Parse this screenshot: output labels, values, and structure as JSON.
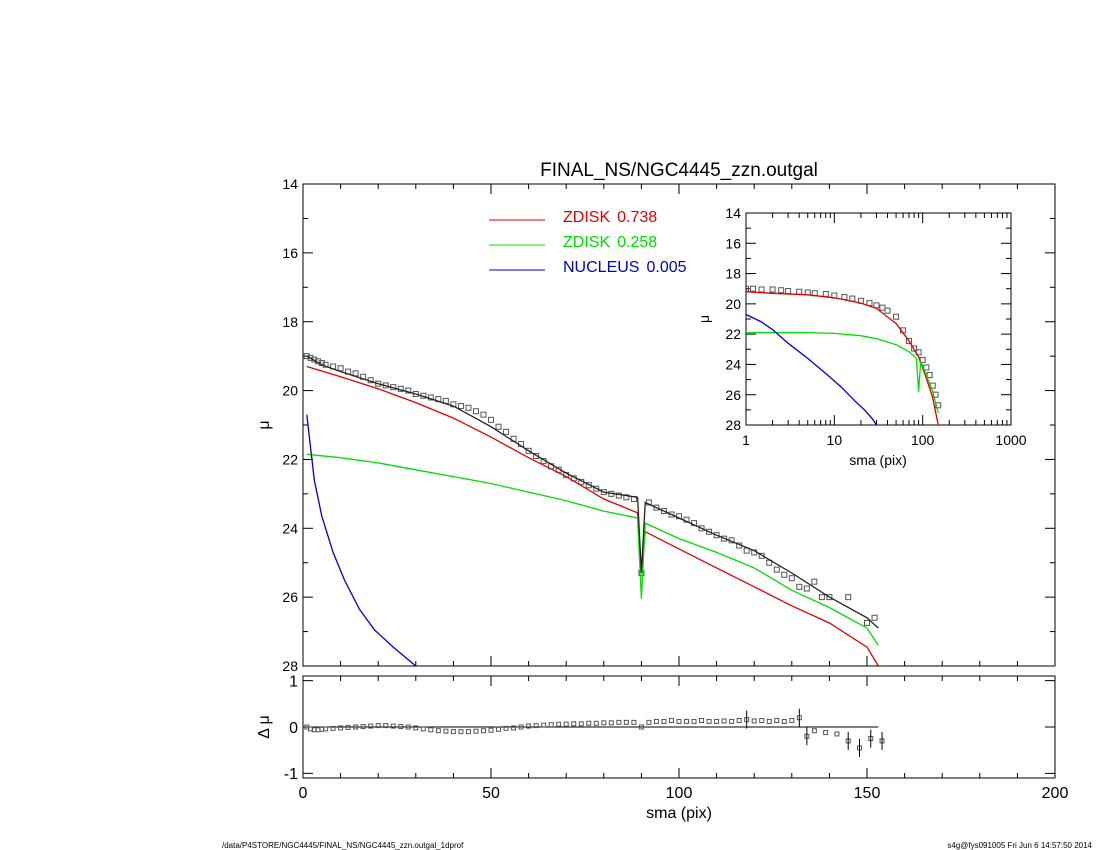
{
  "colors": {
    "zdisk1": "#e00000",
    "zdisk2": "#00dd00",
    "nucleus": "#0000cc",
    "model": "#222222",
    "data_points": "#555555",
    "axes": "#000000"
  },
  "footer": {
    "left": "/data/P4STORE/NGC4445/FINAL_NS/NGC4445_zzn.outgal_1dprof",
    "right": "s4g@fys091005  Fri Jun  6 14:57:50 2014"
  },
  "chart_data": [
    {
      "type": "line",
      "title": "FINAL_NS/NGC4445_zzn.outgal",
      "xlabel": "",
      "ylabel": "μ",
      "xlim": [
        0,
        200
      ],
      "ylim": [
        28,
        14
      ],
      "x_ticks": [
        0,
        50,
        100,
        150,
        200
      ],
      "x_tick_labels": [
        "",
        "",
        "",
        "",
        ""
      ],
      "y_ticks": [
        14,
        16,
        18,
        20,
        22,
        24,
        26,
        28
      ],
      "y_tick_labels": [
        "14",
        "16",
        "18",
        "20",
        "22",
        "24",
        "26",
        "28"
      ],
      "legend": {
        "placement": "top-center",
        "entries": [
          {
            "label": "ZDISK",
            "value": "0.738",
            "color": "#e00000"
          },
          {
            "label": "ZDISK",
            "value": "0.258",
            "color": "#00dd00"
          },
          {
            "label": "NUCLEUS",
            "value": "0.005",
            "color": "#0000cc"
          }
        ]
      },
      "series": [
        {
          "name": "ZDISK 0.738",
          "color": "#e00000",
          "x": [
            1,
            10,
            20,
            30,
            40,
            50,
            60,
            70,
            80,
            89,
            90,
            91,
            100,
            110,
            120,
            130,
            140,
            150,
            153
          ],
          "y": [
            19.3,
            19.6,
            19.95,
            20.35,
            20.8,
            21.35,
            21.95,
            22.5,
            23.15,
            23.55,
            25.2,
            24.1,
            24.6,
            25.15,
            25.7,
            26.25,
            26.75,
            27.45,
            28.0
          ]
        },
        {
          "name": "ZDISK 0.258",
          "color": "#00dd00",
          "x": [
            1,
            10,
            20,
            30,
            40,
            50,
            60,
            70,
            80,
            89,
            90,
            91,
            100,
            110,
            120,
            130,
            140,
            150,
            153
          ],
          "y": [
            21.85,
            21.95,
            22.1,
            22.3,
            22.5,
            22.7,
            22.95,
            23.2,
            23.5,
            23.7,
            26.05,
            23.85,
            24.3,
            24.7,
            25.15,
            25.8,
            26.3,
            26.9,
            27.4
          ]
        },
        {
          "name": "NUCLEUS 0.005",
          "color": "#0000cc",
          "x": [
            1,
            3,
            5,
            8,
            11,
            15,
            19,
            24,
            30
          ],
          "y": [
            20.7,
            22.6,
            23.65,
            24.7,
            25.5,
            26.35,
            26.95,
            27.45,
            28.0
          ]
        },
        {
          "name": "",
          "color": "#222222",
          "x": [
            1,
            5,
            10,
            20,
            30,
            40,
            50,
            60,
            70,
            80,
            89,
            90,
            91,
            100,
            110,
            120,
            130,
            140,
            150,
            153
          ],
          "y": [
            19.0,
            19.25,
            19.45,
            19.8,
            20.1,
            20.45,
            21.05,
            21.75,
            22.4,
            22.95,
            23.1,
            25.3,
            23.25,
            23.7,
            24.2,
            24.65,
            25.3,
            26.0,
            26.6,
            26.9
          ]
        }
      ],
      "points": {
        "x": [
          1,
          2,
          3,
          4,
          5,
          6,
          8,
          10,
          12,
          14,
          16,
          18,
          20,
          22,
          24,
          26,
          28,
          30,
          32,
          34,
          36,
          38,
          40,
          42,
          44,
          46,
          48,
          50,
          52,
          54,
          56,
          58,
          60,
          62,
          64,
          66,
          68,
          70,
          72,
          74,
          76,
          78,
          80,
          82,
          84,
          86,
          88,
          90,
          92,
          94,
          96,
          98,
          100,
          102,
          104,
          106,
          108,
          110,
          112,
          114,
          116,
          118,
          120,
          122,
          124,
          126,
          128,
          130,
          132,
          134,
          136,
          138,
          140,
          145,
          150,
          152
        ],
        "y": [
          19.0,
          19.05,
          19.1,
          19.15,
          19.2,
          19.25,
          19.3,
          19.35,
          19.45,
          19.5,
          19.6,
          19.7,
          19.8,
          19.85,
          19.9,
          19.95,
          20.0,
          20.1,
          20.15,
          20.2,
          20.25,
          20.3,
          20.4,
          20.45,
          20.5,
          20.6,
          20.7,
          20.85,
          21.05,
          21.2,
          21.4,
          21.55,
          21.75,
          21.9,
          22.05,
          22.2,
          22.3,
          22.45,
          22.55,
          22.65,
          22.75,
          22.85,
          22.95,
          23.0,
          23.05,
          23.1,
          23.15,
          25.3,
          23.25,
          23.4,
          23.5,
          23.6,
          23.65,
          23.75,
          23.85,
          24.0,
          24.1,
          24.2,
          24.3,
          24.35,
          24.5,
          24.65,
          24.7,
          24.8,
          25.0,
          25.2,
          25.35,
          25.45,
          25.7,
          25.75,
          25.55,
          26.0,
          26.0,
          26.0,
          26.75,
          26.6
        ]
      }
    },
    {
      "type": "scatter",
      "title": "",
      "xlabel": "sma (pix)",
      "ylabel": "Δ μ",
      "xlim": [
        0,
        200
      ],
      "ylim": [
        -1.1,
        1.1
      ],
      "x_ticks": [
        0,
        50,
        100,
        150,
        200
      ],
      "x_tick_labels": [
        "0",
        "50",
        "100",
        "150",
        "200"
      ],
      "y_ticks": [
        -1,
        0,
        1
      ],
      "y_tick_labels": [
        "-1",
        "0",
        "1"
      ],
      "reference_line": {
        "x": [
          0,
          153
        ],
        "y": 0
      },
      "points": {
        "x": [
          1,
          2,
          3,
          4,
          5,
          6,
          8,
          10,
          12,
          14,
          16,
          18,
          20,
          22,
          24,
          26,
          28,
          30,
          32,
          34,
          36,
          38,
          40,
          42,
          44,
          46,
          48,
          50,
          52,
          54,
          56,
          58,
          60,
          62,
          64,
          66,
          68,
          70,
          72,
          74,
          76,
          78,
          80,
          82,
          84,
          86,
          88,
          90,
          92,
          94,
          96,
          98,
          100,
          102,
          104,
          106,
          108,
          110,
          112,
          114,
          116,
          118,
          120,
          122,
          124,
          126,
          128,
          130,
          132,
          134,
          136,
          139,
          142,
          145,
          148,
          151,
          154
        ],
        "y": [
          0.0,
          -0.04,
          -0.06,
          -0.06,
          -0.05,
          -0.04,
          -0.03,
          -0.02,
          -0.01,
          0.0,
          0.01,
          0.02,
          0.03,
          0.03,
          0.02,
          0.01,
          0.0,
          -0.02,
          -0.04,
          -0.06,
          -0.08,
          -0.09,
          -0.1,
          -0.1,
          -0.1,
          -0.09,
          -0.08,
          -0.07,
          -0.05,
          -0.03,
          -0.02,
          0.0,
          0.02,
          0.03,
          0.04,
          0.05,
          0.06,
          0.06,
          0.07,
          0.07,
          0.08,
          0.08,
          0.09,
          0.09,
          0.1,
          0.1,
          0.1,
          0.0,
          0.1,
          0.12,
          0.12,
          0.14,
          0.12,
          0.12,
          0.12,
          0.14,
          0.12,
          0.12,
          0.13,
          0.12,
          0.14,
          0.16,
          0.13,
          0.14,
          0.12,
          0.14,
          0.12,
          0.14,
          0.2,
          -0.2,
          -0.08,
          -0.12,
          -0.15,
          -0.3,
          -0.45,
          -0.25,
          -0.3
        ]
      }
    },
    {
      "type": "line",
      "title": "",
      "xlabel": "sma (pix)",
      "ylabel": "μ",
      "x_scale": "log",
      "xlim": [
        1,
        1000
      ],
      "ylim": [
        28,
        14
      ],
      "x_ticks": [
        1,
        10,
        100,
        1000
      ],
      "x_tick_labels": [
        "1",
        "10",
        "100",
        "1000"
      ],
      "y_ticks": [
        14,
        16,
        18,
        20,
        22,
        24,
        26,
        28
      ],
      "y_tick_labels": [
        "14",
        "16",
        "18",
        "20",
        "22",
        "24",
        "26",
        "28"
      ],
      "series": [
        {
          "name": "",
          "color": "#e00000",
          "x": [
            1,
            2,
            5,
            10,
            20,
            30,
            50,
            70,
            90,
            110,
            130,
            150
          ],
          "y": [
            19.2,
            19.3,
            19.4,
            19.6,
            19.95,
            20.3,
            21.3,
            22.45,
            23.5,
            24.9,
            26.2,
            28.0
          ]
        },
        {
          "name": "",
          "color": "#00dd00",
          "x": [
            1,
            2,
            5,
            10,
            20,
            30,
            50,
            70,
            85,
            90,
            95,
            110,
            130,
            150
          ],
          "y": [
            21.9,
            21.9,
            21.9,
            21.95,
            22.1,
            22.3,
            22.7,
            23.15,
            23.6,
            25.8,
            23.8,
            24.7,
            25.8,
            27.2
          ]
        },
        {
          "name": "",
          "color": "#0000cc",
          "x": [
            1,
            1.5,
            2,
            3,
            5,
            8,
            12,
            17,
            22,
            27,
            30
          ],
          "y": [
            20.7,
            21.2,
            21.7,
            22.6,
            23.6,
            24.6,
            25.5,
            26.4,
            27.0,
            27.6,
            28.0
          ]
        }
      ],
      "points": {
        "x": [
          1,
          1.2,
          1.5,
          2,
          2.5,
          3,
          4,
          5,
          6,
          8,
          10,
          13,
          16,
          20,
          25,
          30,
          35,
          40,
          50,
          60,
          70,
          80,
          90,
          100,
          110,
          120,
          130,
          140,
          150
        ],
        "y": [
          19.0,
          19.0,
          19.05,
          19.05,
          19.1,
          19.15,
          19.2,
          19.25,
          19.3,
          19.35,
          19.45,
          19.55,
          19.65,
          19.8,
          19.95,
          20.1,
          20.25,
          20.45,
          20.85,
          21.75,
          22.45,
          22.95,
          23.2,
          23.7,
          24.2,
          24.7,
          25.4,
          26.0,
          26.7
        ]
      }
    }
  ]
}
